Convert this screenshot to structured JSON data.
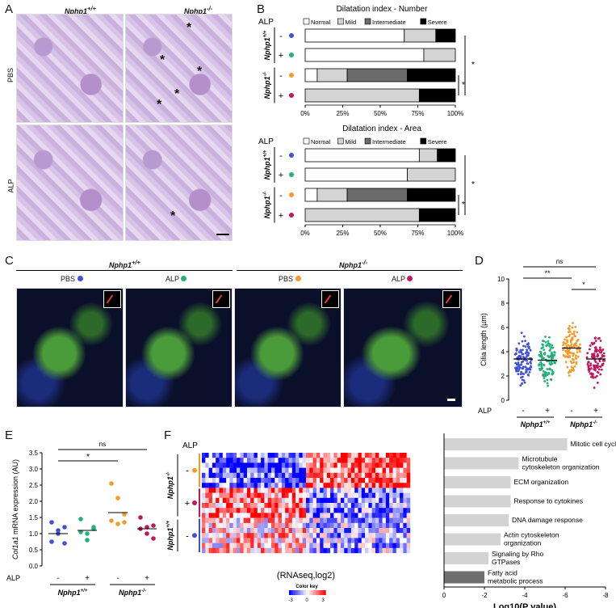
{
  "panels": {
    "A": {
      "letter": "A",
      "col_headers": [
        "Nphp1",
        "Nphp1"
      ],
      "col_sups": [
        "+/+",
        "-/-"
      ],
      "row_labels": [
        "PBS",
        "ALP"
      ],
      "asterisk": "*"
    },
    "B": {
      "letter": "B",
      "alp_label": "ALP",
      "legend": [
        "Normal",
        "Mild",
        "Intermediate",
        "Severe"
      ],
      "legend_colors": [
        "#ffffff",
        "#d4d4d4",
        "#6b6b6b",
        "#000000"
      ],
      "group_labels": [
        "Nphp1",
        "Nphp1"
      ],
      "group_sups": [
        "+/+",
        "-/-"
      ],
      "row_signs": [
        "-",
        "+",
        "-",
        "+"
      ],
      "dot_colors": [
        "#3f51d6",
        "#23b07a",
        "#f39a2b",
        "#c2185b"
      ],
      "sig": "*",
      "x_ticks": [
        "0%",
        "25%",
        "50%",
        "75%",
        "100%"
      ]
    },
    "C": {
      "letter": "C",
      "groups": [
        "Nphp1",
        "Nphp1"
      ],
      "group_sups": [
        "+/+",
        "-/-"
      ],
      "labels": [
        "PBS",
        "ALP",
        "PBS",
        "ALP"
      ]
    },
    "D": {
      "letter": "D",
      "ylabel": "Cilia length (µm)",
      "yticks": [
        "0",
        "2",
        "4",
        "6",
        "8",
        "10"
      ],
      "sig_labels": [
        "ns",
        "**",
        "*"
      ],
      "alp_label": "ALP",
      "signs": [
        "-",
        "+",
        "-",
        "+"
      ],
      "groups": [
        "Nphp1",
        "Nphp1"
      ],
      "group_sups": [
        "+/+",
        "-/-"
      ]
    },
    "E": {
      "letter": "E",
      "ylabel_gene": "Col1a1",
      "ylabel_rest": " mRNA expression (AU)",
      "yticks": [
        "0.0",
        "0.5",
        "1.0",
        "1.5",
        "2.0",
        "2.5",
        "3.0",
        "3.5"
      ],
      "sig_labels": [
        "ns",
        "*"
      ],
      "alp_label": "ALP",
      "signs": [
        "-",
        "+",
        "-",
        "+"
      ],
      "groups": [
        "Nphp1",
        "Nphp1"
      ],
      "group_sups": [
        "+/+",
        "-/-"
      ]
    },
    "F": {
      "letter": "F",
      "alp_label": "ALP",
      "heatmap_caption": "(RNAseq,log2)",
      "color_key_title": "Color key",
      "color_key_ticks": [
        "-3",
        "0",
        "3"
      ],
      "row_signs": [
        "-",
        "+",
        "-"
      ],
      "groups": [
        "Nphp1",
        "Nphp1"
      ],
      "group_sups": [
        "-/-",
        "+/+"
      ],
      "xlabel": "Log10(P value)",
      "xticks": [
        "0",
        "-2",
        "-4",
        "-6",
        "-8"
      ]
    }
  },
  "chart_data": [
    {
      "type": "bar",
      "title": "Dilatation index - Number",
      "categories": [
        "Nphp1+/+ ALP-",
        "Nphp1+/+ ALP+",
        "Nphp1-/- ALP-",
        "Nphp1-/- ALP+"
      ],
      "series": [
        {
          "name": "Normal",
          "values": [
            66,
            79,
            8,
            0
          ]
        },
        {
          "name": "Mild",
          "values": [
            21,
            21,
            20,
            76
          ]
        },
        {
          "name": "Intermediate",
          "values": [
            0,
            0,
            40,
            0
          ]
        },
        {
          "name": "Severe",
          "values": [
            13,
            0,
            32,
            24
          ]
        }
      ],
      "xlim": [
        0,
        100
      ]
    },
    {
      "type": "bar",
      "title": "Dilatation index - Area",
      "categories": [
        "Nphp1+/+ ALP-",
        "Nphp1+/+ ALP+",
        "Nphp1-/- ALP-",
        "Nphp1-/- ALP+"
      ],
      "series": [
        {
          "name": "Normal",
          "values": [
            76,
            68,
            8,
            0
          ]
        },
        {
          "name": "Mild",
          "values": [
            12,
            32,
            20,
            76
          ]
        },
        {
          "name": "Intermediate",
          "values": [
            0,
            0,
            40,
            0
          ]
        },
        {
          "name": "Severe",
          "values": [
            12,
            0,
            32,
            24
          ]
        }
      ],
      "xlim": [
        0,
        100
      ]
    },
    {
      "type": "scatter",
      "categories": [
        "Nphp1+/+ ALP-",
        "Nphp1+/+ ALP+",
        "Nphp1-/- ALP-",
        "Nphp1-/- ALP+"
      ],
      "means": [
        3.4,
        3.3,
        4.3,
        3.4
      ],
      "ylim": [
        0,
        10
      ],
      "ylabel": "Cilia length (µm)"
    },
    {
      "type": "scatter",
      "categories": [
        "Nphp1+/+ ALP-",
        "Nphp1+/+ ALP+",
        "Nphp1-/- ALP-",
        "Nphp1-/- ALP+"
      ],
      "points": [
        [
          1.35,
          1.1,
          0.7,
          0.75,
          1.0,
          1.2
        ],
        [
          1.45,
          1.0,
          1.15,
          1.05,
          0.8,
          1.2
        ],
        [
          2.55,
          2.1,
          1.6,
          1.4,
          1.3,
          1.35
        ],
        [
          1.5,
          1.2,
          1.25,
          1.15,
          1.0,
          0.85
        ]
      ],
      "means": [
        1.0,
        1.1,
        1.65,
        1.15
      ],
      "ylim": [
        0,
        3.5
      ]
    },
    {
      "type": "bar",
      "categories": [
        "Mitotic cell cycle",
        "Microtubule cytoskeleton organization",
        "ECM organization",
        "Response to cytokines",
        "DNA damage response",
        "Actin cytoskeleton organization",
        "Signaling by Rho GTPases",
        "Fatty acid metabolic process"
      ],
      "values": [
        -6.1,
        -3.7,
        -3.3,
        -3.3,
        -3.2,
        -2.8,
        -2.2,
        -2.0
      ],
      "xlim": [
        0,
        -8
      ],
      "xlabel": "Log10(P value)"
    }
  ]
}
